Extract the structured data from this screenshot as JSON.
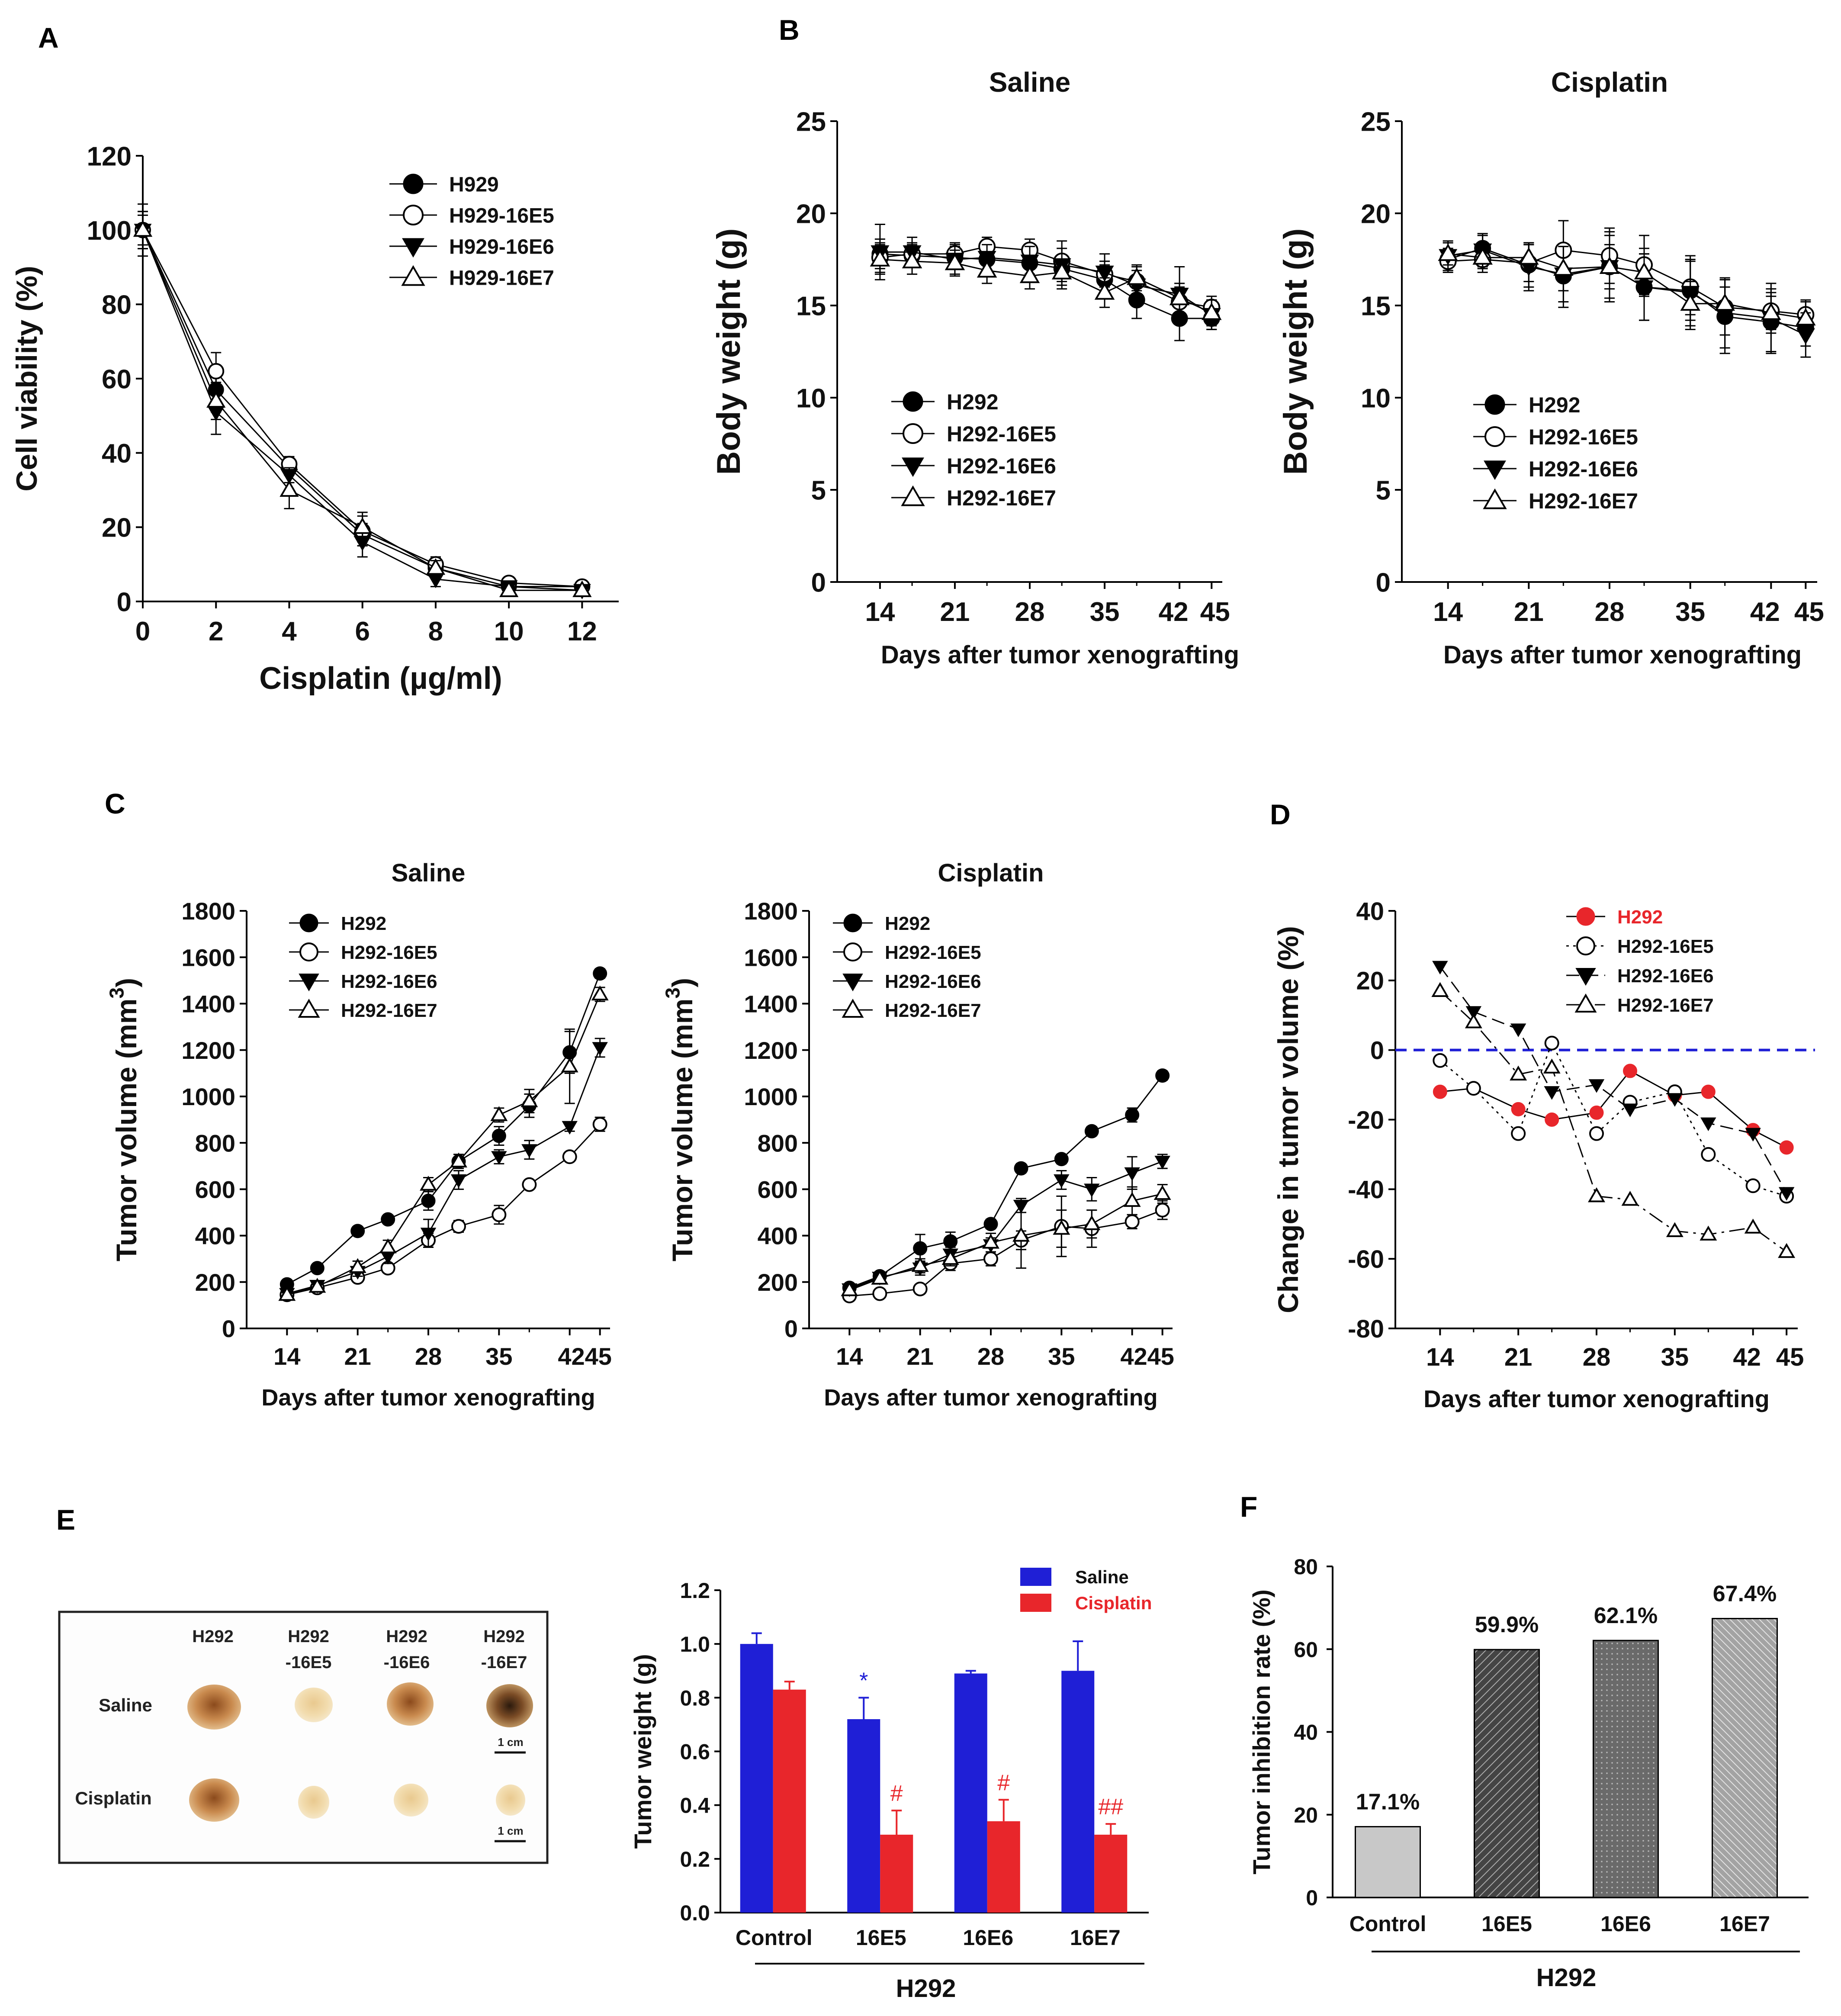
{
  "figure": {
    "panel_labels": [
      "A",
      "B",
      "C",
      "D",
      "E",
      "F"
    ]
  },
  "chart_data": [
    {
      "id": "A",
      "type": "line",
      "title": "",
      "xlabel": "Cisplatin (µg/ml)",
      "ylabel": "Cell viability (%)",
      "xlim": [
        0,
        13
      ],
      "ylim": [
        0,
        120
      ],
      "xticks": [
        0,
        2,
        4,
        6,
        8,
        10,
        12
      ],
      "yticks": [
        0,
        20,
        40,
        60,
        80,
        100,
        120
      ],
      "x": [
        0,
        2,
        4,
        6,
        8,
        10,
        12
      ],
      "series": [
        {
          "name": "H929",
          "marker": "filled-circle",
          "values": [
            100,
            57,
            36,
            18,
            9,
            4,
            4
          ],
          "err": [
            4,
            6,
            2,
            3,
            2,
            1,
            1
          ]
        },
        {
          "name": "H929-16E5",
          "marker": "open-circle",
          "values": [
            100,
            62,
            37,
            19,
            10,
            5,
            4
          ],
          "err": [
            5,
            5,
            2,
            4,
            2,
            1,
            1
          ]
        },
        {
          "name": "H929-16E6",
          "marker": "filled-triangle-down",
          "values": [
            100,
            51,
            34,
            16,
            6,
            4,
            3
          ],
          "err": [
            5,
            6,
            2,
            4,
            2,
            1,
            1
          ]
        },
        {
          "name": "H929-16E7",
          "marker": "open-triangle-up",
          "values": [
            100,
            54,
            30,
            20,
            9,
            3,
            3
          ],
          "err": [
            7,
            5,
            5,
            4,
            2,
            1,
            1
          ]
        }
      ]
    },
    {
      "id": "B1",
      "type": "line",
      "title": "Saline",
      "xlabel": "Days after tumor xenografting",
      "ylabel": "Body weight (g)",
      "xlim": [
        10,
        46
      ],
      "ylim": [
        0,
        25
      ],
      "xticks": [
        14,
        21,
        28,
        35,
        42,
        45
      ],
      "yticks": [
        0,
        5,
        10,
        15,
        20,
        25
      ],
      "x": [
        14,
        17,
        21,
        24,
        28,
        31,
        35,
        38,
        42,
        45
      ],
      "series": [
        {
          "name": "H292",
          "marker": "filled-circle",
          "values": [
            17.8,
            17.7,
            17.6,
            17.5,
            17.3,
            17.0,
            16.4,
            15.3,
            14.3,
            14.3
          ],
          "err": [
            0.8,
            0.6,
            0.6,
            0.6,
            0.6,
            0.7,
            0.8,
            1.0,
            1.2,
            0.6
          ]
        },
        {
          "name": "H292-16E5",
          "marker": "open-circle",
          "values": [
            17.6,
            17.8,
            17.8,
            18.2,
            18.0,
            17.4,
            16.7,
            16.3,
            15.2,
            14.9
          ],
          "err": [
            0.8,
            0.6,
            0.6,
            0.5,
            0.6,
            0.7,
            0.7,
            0.8,
            0.8,
            0.6
          ]
        },
        {
          "name": "H292-16E6",
          "marker": "filled-triangle-down",
          "values": [
            17.9,
            17.9,
            17.5,
            17.6,
            17.4,
            17.2,
            16.8,
            16.1,
            15.6,
            14.5
          ],
          "err": [
            1.5,
            0.8,
            0.8,
            0.7,
            0.8,
            1.3,
            1.0,
            0.8,
            1.5,
            0.8
          ]
        },
        {
          "name": "H292-16E7",
          "marker": "open-triangle-up",
          "values": [
            17.5,
            17.4,
            17.3,
            16.9,
            16.6,
            16.8,
            15.7,
            16.5,
            15.4,
            14.6
          ],
          "err": [
            0.8,
            0.7,
            0.7,
            0.7,
            0.7,
            0.7,
            0.8,
            0.7,
            0.8,
            0.7
          ]
        }
      ]
    },
    {
      "id": "B2",
      "type": "line",
      "title": "Cisplatin",
      "xlabel": "Days after tumor xenografting",
      "ylabel": "Body weight (g)",
      "xlim": [
        10,
        46
      ],
      "ylim": [
        0,
        25
      ],
      "xticks": [
        14,
        21,
        28,
        35,
        42,
        45
      ],
      "yticks": [
        0,
        5,
        10,
        15,
        20,
        25
      ],
      "x": [
        14,
        17,
        21,
        24,
        28,
        31,
        35,
        38,
        42,
        45
      ],
      "series": [
        {
          "name": "H292",
          "marker": "filled-circle",
          "values": [
            17.5,
            18.1,
            17.2,
            16.6,
            17.1,
            16.0,
            15.8,
            14.4,
            14.1,
            13.8
          ],
          "err": [
            0.6,
            0.7,
            1.2,
            1.7,
            1.7,
            1.8,
            1.6,
            2.0,
            1.6,
            1.0
          ]
        },
        {
          "name": "H292-16E5",
          "marker": "open-circle",
          "values": [
            17.4,
            17.5,
            17.3,
            18.0,
            17.7,
            17.2,
            16.0,
            14.9,
            14.7,
            14.5
          ],
          "err": [
            0.6,
            0.7,
            1.0,
            1.6,
            1.5,
            1.6,
            1.5,
            1.5,
            1.2,
            0.8
          ]
        },
        {
          "name": "H292-16E6",
          "marker": "filled-triangle-down",
          "values": [
            17.7,
            18.0,
            17.1,
            16.7,
            17.1,
            16.0,
            15.7,
            14.6,
            14.3,
            13.4
          ],
          "err": [
            0.8,
            0.9,
            1.3,
            1.5,
            1.9,
            1.8,
            2.0,
            1.9,
            1.9,
            1.2
          ]
        },
        {
          "name": "H292-16E7",
          "marker": "open-triangle-up",
          "values": [
            17.8,
            17.6,
            17.6,
            17.0,
            17.1,
            16.8,
            15.1,
            15.1,
            14.6,
            14.3
          ],
          "err": [
            0.6,
            0.6,
            0.7,
            1.2,
            1.2,
            1.3,
            1.2,
            0.9,
            0.9,
            0.9
          ]
        }
      ]
    },
    {
      "id": "C1",
      "type": "line",
      "title": "Saline",
      "xlabel": "Days after tumor xenografting",
      "ylabel": "Tumor volume (mm",
      "ylabel_sup": "3",
      "ylabel_end": ")",
      "xlim": [
        10,
        46
      ],
      "ylim": [
        0,
        1800
      ],
      "xticks": [
        14,
        21,
        28,
        35,
        42,
        45
      ],
      "xtick_labels": [
        "14",
        "21",
        "28",
        "35",
        "4245"
      ],
      "yticks": [
        0,
        200,
        400,
        600,
        800,
        1000,
        1200,
        1400,
        1600,
        1800
      ],
      "x": [
        14,
        17,
        21,
        24,
        28,
        31,
        35,
        38,
        42,
        45
      ],
      "series": [
        {
          "name": "H292",
          "marker": "filled-circle",
          "values": [
            190,
            260,
            420,
            470,
            550,
            720,
            830,
            960,
            1190,
            1530
          ],
          "err": [
            15,
            15,
            15,
            15,
            40,
            30,
            40,
            50,
            90,
            20
          ]
        },
        {
          "name": "H292-16E5",
          "marker": "open-circle",
          "values": [
            145,
            175,
            220,
            260,
            380,
            440,
            490,
            620,
            740,
            880
          ],
          "err": [
            15,
            15,
            20,
            20,
            30,
            25,
            40,
            20,
            20,
            30
          ]
        },
        {
          "name": "H292-16E6",
          "marker": "filled-triangle-down",
          "values": [
            150,
            185,
            245,
            310,
            410,
            640,
            740,
            770,
            870,
            1210
          ],
          "err": [
            15,
            15,
            20,
            30,
            60,
            40,
            30,
            40,
            20,
            40
          ]
        },
        {
          "name": "H292-16E7",
          "marker": "open-triangle-up",
          "values": [
            145,
            180,
            265,
            350,
            620,
            720,
            920,
            980,
            1130,
            1440
          ],
          "err": [
            15,
            15,
            25,
            30,
            30,
            30,
            30,
            50,
            160,
            30
          ]
        }
      ]
    },
    {
      "id": "C2",
      "type": "line",
      "title": "Cisplatin",
      "xlabel": "Days after tumor xenografting",
      "ylabel": "Tumor volume (mm",
      "ylabel_sup": "3",
      "ylabel_end": ")",
      "xlim": [
        10,
        46
      ],
      "ylim": [
        0,
        1800
      ],
      "xticks": [
        14,
        21,
        28,
        35,
        42,
        45
      ],
      "xtick_labels": [
        "14",
        "21",
        "28",
        "35",
        "4245"
      ],
      "yticks": [
        0,
        200,
        400,
        600,
        800,
        1000,
        1200,
        1400,
        1600,
        1800
      ],
      "x": [
        14,
        17,
        21,
        24,
        28,
        31,
        35,
        38,
        42,
        45
      ],
      "series": [
        {
          "name": "H292",
          "marker": "filled-circle",
          "values": [
            175,
            225,
            345,
            375,
            450,
            690,
            730,
            850,
            920,
            1090
          ],
          "err": [
            15,
            20,
            60,
            40,
            20,
            20,
            20,
            20,
            30,
            20
          ]
        },
        {
          "name": "H292-16E5",
          "marker": "open-circle",
          "values": [
            140,
            150,
            170,
            280,
            300,
            380,
            440,
            430,
            460,
            510
          ],
          "err": [
            15,
            15,
            20,
            30,
            30,
            40,
            130,
            80,
            30,
            40
          ]
        },
        {
          "name": "H292-16E6",
          "marker": "filled-triangle-down",
          "values": [
            170,
            220,
            260,
            320,
            360,
            530,
            640,
            600,
            670,
            720
          ],
          "err": [
            15,
            20,
            30,
            30,
            30,
            30,
            40,
            50,
            70,
            30
          ]
        },
        {
          "name": "H292-16E7",
          "marker": "open-triangle-up",
          "values": [
            165,
            215,
            270,
            300,
            370,
            400,
            430,
            450,
            550,
            580
          ],
          "err": [
            15,
            20,
            30,
            30,
            40,
            140,
            80,
            60,
            60,
            40
          ]
        }
      ]
    },
    {
      "id": "D",
      "type": "line",
      "title": "",
      "xlabel": "Days after tumor xenografting",
      "ylabel": "Change in tumor volume (%)",
      "xlim": [
        10,
        46
      ],
      "ylim": [
        -80,
        40
      ],
      "xticks": [
        14,
        21,
        28,
        35,
        42,
        45
      ],
      "yticks": [
        -80,
        -60,
        -40,
        -20,
        0,
        20,
        40
      ],
      "reference_line": 0,
      "x": [
        14,
        17,
        21,
        24,
        28,
        31,
        35,
        38,
        42,
        45
      ],
      "series": [
        {
          "name": "H292",
          "marker": "filled-circle",
          "color": "#e8262b",
          "values": [
            -12,
            -11,
            -17,
            -20,
            -18,
            -6,
            -13,
            -12,
            -23,
            -28
          ]
        },
        {
          "name": "H292-16E5",
          "marker": "open-circle",
          "values": [
            -3,
            -11,
            -24,
            2,
            -24,
            -15,
            -12,
            -30,
            -39,
            -42
          ]
        },
        {
          "name": "H292-16E6",
          "marker": "filled-triangle-down",
          "values": [
            24,
            11,
            6,
            -12,
            -10,
            -17,
            -14,
            -21,
            -24,
            -41
          ]
        },
        {
          "name": "H292-16E7",
          "marker": "open-triangle-up",
          "values": [
            17,
            8,
            -7,
            -5,
            -42,
            -43,
            -52,
            -53,
            -51,
            -58
          ]
        }
      ]
    },
    {
      "id": "E",
      "type": "bar",
      "title": "",
      "xlabel": "",
      "group_label": "H292",
      "ylabel": "Tumor weight (g)",
      "ylim": [
        0,
        1.2
      ],
      "yticks": [
        "0.0",
        "0.2",
        "0.4",
        "0.6",
        "0.8",
        "1.0",
        "1.2"
      ],
      "categories": [
        "Control",
        "16E5",
        "16E6",
        "16E7"
      ],
      "series": [
        {
          "name": "Saline",
          "color": "#1f1fd6",
          "values": [
            1.0,
            0.72,
            0.89,
            0.9
          ],
          "err": [
            0.04,
            0.08,
            0.01,
            0.11
          ],
          "annotations": [
            "",
            "*",
            "",
            ""
          ]
        },
        {
          "name": "Cisplatin",
          "color": "#e8262b",
          "values": [
            0.83,
            0.29,
            0.34,
            0.29
          ],
          "err": [
            0.03,
            0.09,
            0.08,
            0.04
          ],
          "annotations": [
            "",
            "#",
            "#",
            "##"
          ]
        }
      ]
    },
    {
      "id": "F",
      "type": "bar",
      "title": "",
      "xlabel": "",
      "group_label": "H292",
      "ylabel": "Tumor inhibition rate (%)",
      "ylim": [
        0,
        80
      ],
      "yticks": [
        0,
        20,
        40,
        60,
        80
      ],
      "categories": [
        "Control",
        "16E5",
        "16E6",
        "16E7"
      ],
      "values": [
        17.1,
        59.9,
        62.1,
        67.4
      ],
      "value_labels": [
        "17.1%",
        "59.9%",
        "62.1%",
        "67.4%"
      ]
    }
  ],
  "photo_panel": {
    "columns": [
      "H292",
      "H292",
      "H292",
      "H292"
    ],
    "column_suffixes": [
      "",
      "-16E5",
      "-16E6",
      "-16E7"
    ],
    "rows": [
      "Saline",
      "Cisplatin"
    ],
    "scale_bar_label": "1 cm"
  }
}
